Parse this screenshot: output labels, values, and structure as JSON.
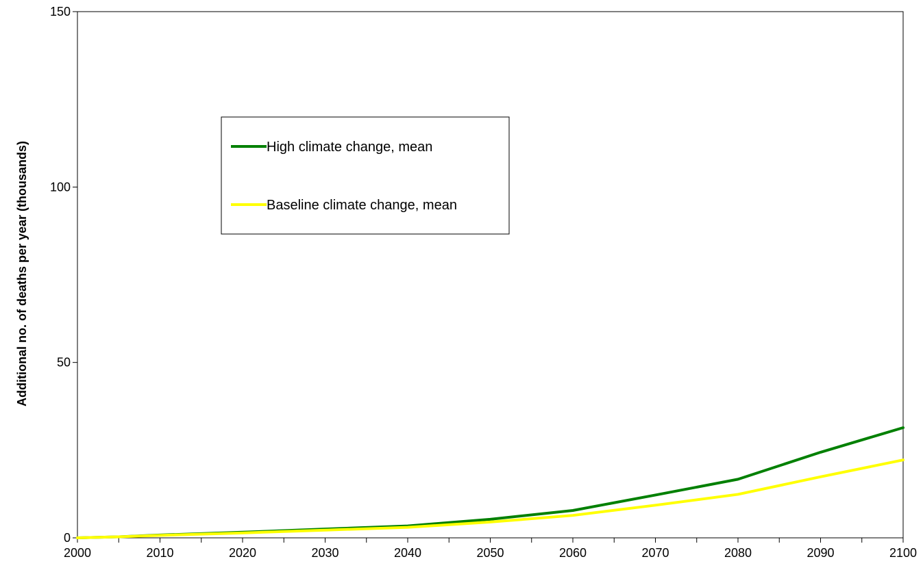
{
  "chart_data": {
    "type": "line",
    "ylabel": "Additional no. of deaths per year (thousands)",
    "xlabel": "",
    "xlim": [
      2000,
      2100
    ],
    "ylim": [
      0,
      150
    ],
    "x_ticks": [
      2000,
      2010,
      2020,
      2030,
      2040,
      2050,
      2060,
      2070,
      2080,
      2090,
      2100
    ],
    "x_minor_step": 5,
    "y_ticks": [
      0,
      50,
      100,
      150
    ],
    "grid": false,
    "legend_position": "upper-left-center",
    "series": [
      {
        "name": "High climate change, mean",
        "color": "#008000",
        "x": [
          2000,
          2005,
          2010,
          2020,
          2030,
          2040,
          2050,
          2060,
          2070,
          2080,
          2090,
          2100
        ],
        "y": [
          0.0,
          0.3,
          0.8,
          1.6,
          2.5,
          3.4,
          5.3,
          7.8,
          12.2,
          16.7,
          24.4,
          31.4
        ]
      },
      {
        "name": "Baseline climate change, mean",
        "color": "#FFFF00",
        "x": [
          2000,
          2005,
          2010,
          2020,
          2030,
          2040,
          2050,
          2060,
          2070,
          2080,
          2090,
          2100
        ],
        "y": [
          0.0,
          0.3,
          0.7,
          1.4,
          2.2,
          3.0,
          4.5,
          6.4,
          9.3,
          12.4,
          17.4,
          22.2
        ]
      }
    ]
  }
}
